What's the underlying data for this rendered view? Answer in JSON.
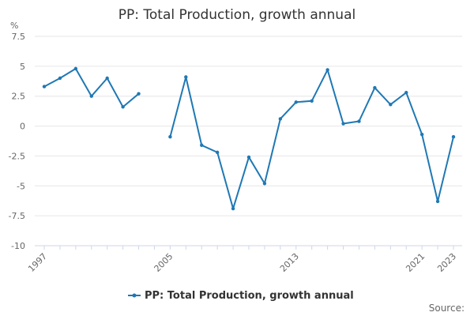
{
  "chart_data": {
    "type": "line",
    "title": "PP: Total Production, growth annual",
    "ylabel": "%",
    "xlabel": "",
    "ylim": [
      -10,
      7.5
    ],
    "xlim": [
      1997,
      2023
    ],
    "y_ticks": [
      {
        "value": 7.5,
        "label": "7.5"
      },
      {
        "value": 5,
        "label": "5"
      },
      {
        "value": 2.5,
        "label": "2.5"
      },
      {
        "value": 0,
        "label": "0"
      },
      {
        "value": -2.5,
        "label": "-2.5"
      },
      {
        "value": -5,
        "label": "-5"
      },
      {
        "value": -7.5,
        "label": "-7.5"
      },
      {
        "value": -10,
        "label": "-10"
      }
    ],
    "x_ticks": [
      {
        "value": 1997,
        "label": "1997"
      },
      {
        "value": 2005,
        "label": "2005"
      },
      {
        "value": 2013,
        "label": "2013"
      },
      {
        "value": 2021,
        "label": "2021"
      },
      {
        "value": 2023,
        "label": "2023"
      }
    ],
    "grid": "horizontal",
    "legend_position": "bottom",
    "series": [
      {
        "name": "PP: Total Production, growth annual",
        "color": "#1f78b4",
        "points": [
          {
            "x": 1997,
            "y": 3.3
          },
          {
            "x": 1998,
            "y": 4.0
          },
          {
            "x": 1999,
            "y": 4.8
          },
          {
            "x": 2000,
            "y": 2.5
          },
          {
            "x": 2001,
            "y": 4.0
          },
          {
            "x": 2002,
            "y": 1.6
          },
          {
            "x": 2003,
            "y": 2.7
          },
          {
            "x": 2004,
            "y": null
          },
          {
            "x": 2005,
            "y": -0.9
          },
          {
            "x": 2006,
            "y": 4.1
          },
          {
            "x": 2007,
            "y": -1.6
          },
          {
            "x": 2008,
            "y": -2.2
          },
          {
            "x": 2009,
            "y": -6.9
          },
          {
            "x": 2010,
            "y": -2.6
          },
          {
            "x": 2011,
            "y": -4.8
          },
          {
            "x": 2012,
            "y": 0.6
          },
          {
            "x": 2013,
            "y": 2.0
          },
          {
            "x": 2014,
            "y": 2.1
          },
          {
            "x": 2015,
            "y": 4.7
          },
          {
            "x": 2016,
            "y": 0.2
          },
          {
            "x": 2017,
            "y": 0.4
          },
          {
            "x": 2018,
            "y": 3.2
          },
          {
            "x": 2019,
            "y": 1.8
          },
          {
            "x": 2020,
            "y": 2.8
          },
          {
            "x": 2021,
            "y": -0.7
          },
          {
            "x": 2022,
            "y": -6.3
          },
          {
            "x": 2023,
            "y": -0.9
          }
        ]
      }
    ],
    "source_label": "Source:"
  }
}
